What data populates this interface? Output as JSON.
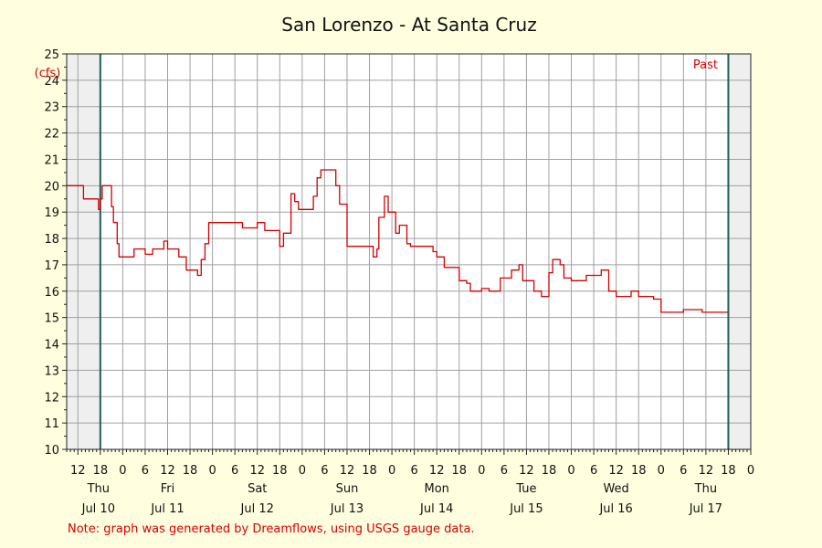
{
  "chart_data": {
    "type": "line",
    "title": "San Lorenzo - At Santa Cruz",
    "ylabel": "(cfs)",
    "ylim": [
      10,
      25
    ],
    "yticks": [
      10,
      11,
      12,
      13,
      14,
      15,
      16,
      17,
      18,
      19,
      20,
      21,
      22,
      23,
      24,
      25
    ],
    "x_range_hours": [
      -9,
      174
    ],
    "x_hour_ticks": [
      {
        "h": -6,
        "label": "12"
      },
      {
        "h": 0,
        "label": "18"
      },
      {
        "h": 6,
        "label": "0"
      },
      {
        "h": 12,
        "label": "6"
      },
      {
        "h": 18,
        "label": "12"
      },
      {
        "h": 24,
        "label": "18"
      },
      {
        "h": 30,
        "label": "0"
      },
      {
        "h": 36,
        "label": "6"
      },
      {
        "h": 42,
        "label": "12"
      },
      {
        "h": 48,
        "label": "18"
      },
      {
        "h": 54,
        "label": "0"
      },
      {
        "h": 60,
        "label": "6"
      },
      {
        "h": 66,
        "label": "12"
      },
      {
        "h": 72,
        "label": "18"
      },
      {
        "h": 78,
        "label": "0"
      },
      {
        "h": 84,
        "label": "6"
      },
      {
        "h": 90,
        "label": "12"
      },
      {
        "h": 96,
        "label": "18"
      },
      {
        "h": 102,
        "label": "0"
      },
      {
        "h": 108,
        "label": "6"
      },
      {
        "h": 114,
        "label": "12"
      },
      {
        "h": 120,
        "label": "18"
      },
      {
        "h": 126,
        "label": "0"
      },
      {
        "h": 132,
        "label": "6"
      },
      {
        "h": 138,
        "label": "12"
      },
      {
        "h": 144,
        "label": "18"
      },
      {
        "h": 150,
        "label": "0"
      },
      {
        "h": 156,
        "label": "6"
      },
      {
        "h": 162,
        "label": "12"
      },
      {
        "h": 168,
        "label": "18"
      },
      {
        "h": 174,
        "label": "0"
      }
    ],
    "day_labels": [
      {
        "h": -0.5,
        "day": "Thu",
        "date": "Jul 10"
      },
      {
        "h": 18,
        "day": "Fri",
        "date": "Jul 11"
      },
      {
        "h": 42,
        "day": "Sat",
        "date": "Jul 12"
      },
      {
        "h": 66,
        "day": "Sun",
        "date": "Jul 13"
      },
      {
        "h": 90,
        "day": "Mon",
        "date": "Jul 14"
      },
      {
        "h": 114,
        "day": "Tue",
        "date": "Jul 15"
      },
      {
        "h": 138,
        "day": "Wed",
        "date": "Jul 16"
      },
      {
        "h": 162,
        "day": "Thu",
        "date": "Jul 17"
      }
    ],
    "past_label": "Past",
    "series": [
      {
        "color": "#d40000",
        "points": [
          [
            -9,
            20
          ],
          [
            -5,
            20
          ],
          [
            -4.5,
            19.5
          ],
          [
            -1,
            19.5
          ],
          [
            -0.5,
            19.1
          ],
          [
            0,
            19.5
          ],
          [
            0.5,
            20
          ],
          [
            2,
            20
          ],
          [
            3,
            19.2
          ],
          [
            3.5,
            18.6
          ],
          [
            4.5,
            17.8
          ],
          [
            5,
            17.3
          ],
          [
            8,
            17.3
          ],
          [
            9,
            17.6
          ],
          [
            12,
            17.4
          ],
          [
            14,
            17.6
          ],
          [
            17,
            17.9
          ],
          [
            18,
            17.6
          ],
          [
            21,
            17.3
          ],
          [
            23,
            16.8
          ],
          [
            26,
            16.6
          ],
          [
            27,
            17.2
          ],
          [
            28,
            17.8
          ],
          [
            29,
            18.6
          ],
          [
            36,
            18.6
          ],
          [
            38,
            18.4
          ],
          [
            42,
            18.6
          ],
          [
            44,
            18.3
          ],
          [
            48,
            17.7
          ],
          [
            49,
            18.2
          ],
          [
            51,
            19.7
          ],
          [
            52,
            19.4
          ],
          [
            53,
            19.1
          ],
          [
            55,
            19.1
          ],
          [
            57,
            19.6
          ],
          [
            58,
            20.3
          ],
          [
            59,
            20.6
          ],
          [
            62,
            20.6
          ],
          [
            63,
            20
          ],
          [
            64,
            19.3
          ],
          [
            66,
            17.7
          ],
          [
            73,
            17.3
          ],
          [
            74,
            17.6
          ],
          [
            74.5,
            18.8
          ],
          [
            76,
            19.6
          ],
          [
            77,
            19
          ],
          [
            79,
            18.2
          ],
          [
            80,
            18.5
          ],
          [
            82,
            17.8
          ],
          [
            83,
            17.7
          ],
          [
            86,
            17.7
          ],
          [
            89,
            17.5
          ],
          [
            90,
            17.3
          ],
          [
            92,
            16.9
          ],
          [
            96,
            16.4
          ],
          [
            98,
            16.3
          ],
          [
            99,
            16
          ],
          [
            102,
            16.1
          ],
          [
            104,
            16
          ],
          [
            107,
            16.5
          ],
          [
            110,
            16.8
          ],
          [
            112,
            17
          ],
          [
            113,
            16.4
          ],
          [
            116,
            16
          ],
          [
            118,
            15.8
          ],
          [
            120,
            16.7
          ],
          [
            121,
            17.2
          ],
          [
            123,
            17
          ],
          [
            124,
            16.5
          ],
          [
            126,
            16.4
          ],
          [
            128,
            16.4
          ],
          [
            130,
            16.6
          ],
          [
            134,
            16.8
          ],
          [
            136,
            16
          ],
          [
            138,
            15.8
          ],
          [
            141,
            15.8
          ],
          [
            142,
            16
          ],
          [
            144,
            15.8
          ],
          [
            148,
            15.7
          ],
          [
            150,
            15.2
          ],
          [
            156,
            15.3
          ],
          [
            161,
            15.2
          ],
          [
            168,
            15.2
          ]
        ]
      }
    ]
  },
  "footer": {
    "note": "Note: graph was generated by Dreamflows, using USGS gauge data."
  }
}
